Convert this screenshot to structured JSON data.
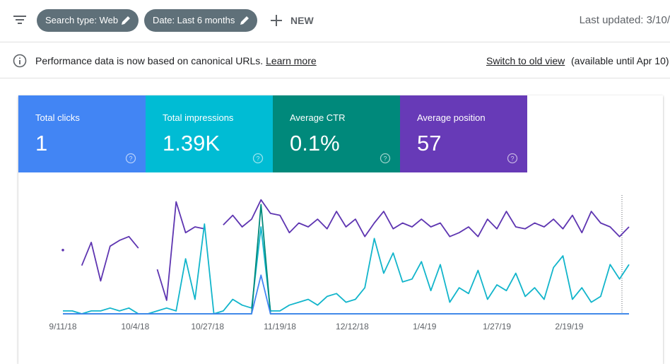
{
  "toolbar": {
    "chips": [
      "Search type: Web",
      "Date: Last 6 months"
    ],
    "new": "NEW",
    "last_updated": "Last updated: 3/10/"
  },
  "notice": {
    "message": "Performance data is now based on canonical URLs.",
    "learn_more": "Learn more",
    "switch": "Switch to old view",
    "available": "(available until Apr 10)"
  },
  "metrics": [
    {
      "label": "Total clicks",
      "value": "1",
      "color": "#4285f4"
    },
    {
      "label": "Total impressions",
      "value": "1.39K",
      "color": "#00bcd4"
    },
    {
      "label": "Average CTR",
      "value": "0.1%",
      "color": "#00897b"
    },
    {
      "label": "Average position",
      "value": "57",
      "color": "#673ab7"
    }
  ],
  "chart_data": {
    "type": "line",
    "x": [
      0,
      3,
      6,
      9,
      12,
      15,
      18,
      21,
      24,
      27,
      30,
      33,
      36,
      39,
      42,
      45,
      48,
      51,
      54,
      57,
      60,
      63,
      66,
      69,
      72,
      75,
      78,
      81,
      84,
      87,
      90,
      93,
      96,
      99,
      102,
      105,
      108,
      111,
      114,
      117,
      120,
      123,
      126,
      129,
      132,
      135,
      138,
      141,
      144,
      147,
      150,
      153,
      156,
      159,
      162,
      165,
      168,
      171,
      174,
      177,
      180
    ],
    "xlim": [
      0,
      180
    ],
    "xticks": [
      {
        "value": 0,
        "label": "9/11/18"
      },
      {
        "value": 23,
        "label": "10/4/18"
      },
      {
        "value": 46,
        "label": "10/27/18"
      },
      {
        "value": 69,
        "label": "11/19/18"
      },
      {
        "value": 92,
        "label": "12/12/18"
      },
      {
        "value": 115,
        "label": "1/4/19"
      },
      {
        "value": 138,
        "label": "1/27/19"
      },
      {
        "value": 161,
        "label": "2/19/19"
      }
    ],
    "series": [
      {
        "color": "#5e35b1",
        "ylim": [
          100,
          40
        ],
        "values": [
          67,
          null,
          75,
          63,
          83,
          65,
          62,
          60,
          66,
          null,
          77,
          93,
          42,
          58,
          55,
          56,
          null,
          54,
          49,
          55,
          51,
          41,
          48,
          49,
          58,
          53,
          55,
          51,
          56,
          47,
          55,
          51,
          60,
          53,
          47,
          56,
          53,
          55,
          51,
          55,
          53,
          60,
          58,
          55,
          60,
          51,
          56,
          47,
          55,
          56,
          53,
          55,
          51,
          56,
          49,
          58,
          47,
          53,
          55,
          60,
          55
        ]
      },
      {
        "color": "#12b5cb",
        "ylim": [
          0,
          40
        ],
        "values": [
          1,
          1,
          0,
          1,
          1,
          2,
          1,
          2,
          0,
          0,
          1,
          2,
          1,
          19,
          5,
          31,
          0,
          1,
          5,
          3,
          2,
          30,
          1,
          1,
          3,
          4,
          5,
          3,
          6,
          7,
          4,
          5,
          9,
          26,
          14,
          21,
          11,
          12,
          18,
          8,
          17,
          4,
          9,
          7,
          15,
          5,
          10,
          8,
          14,
          6,
          9,
          5,
          16,
          20,
          5,
          9,
          4,
          6,
          17,
          12,
          17
        ]
      },
      {
        "color": "#00897b",
        "ylim": [
          0,
          3.5
        ],
        "values": [
          0,
          0,
          0,
          0,
          0,
          0,
          0,
          0,
          0,
          0,
          0,
          0,
          0,
          0,
          0,
          0,
          0,
          0,
          0,
          0,
          0,
          3.3,
          0,
          0,
          0,
          0,
          0,
          0,
          0,
          0,
          0,
          0,
          0,
          0,
          0,
          0,
          0,
          0,
          0,
          0,
          0,
          0,
          0,
          0,
          0,
          0,
          0,
          0,
          0,
          0,
          0,
          0,
          0,
          0,
          0,
          0,
          0,
          0,
          0,
          0,
          0
        ]
      },
      {
        "color": "#4285f4",
        "ylim": [
          0,
          3
        ],
        "values": [
          0,
          0,
          0,
          0,
          0,
          0,
          0,
          0,
          0,
          0,
          0,
          0,
          0,
          0,
          0,
          0,
          0,
          0,
          0,
          0,
          0,
          1,
          0,
          0,
          0,
          0,
          0,
          0,
          0,
          0,
          0,
          0,
          0,
          0,
          0,
          0,
          0,
          0,
          0,
          0,
          0,
          0,
          0,
          0,
          0,
          0,
          0,
          0,
          0,
          0,
          0,
          0,
          0,
          0,
          0,
          0,
          0,
          0,
          0,
          0,
          0
        ]
      }
    ]
  }
}
